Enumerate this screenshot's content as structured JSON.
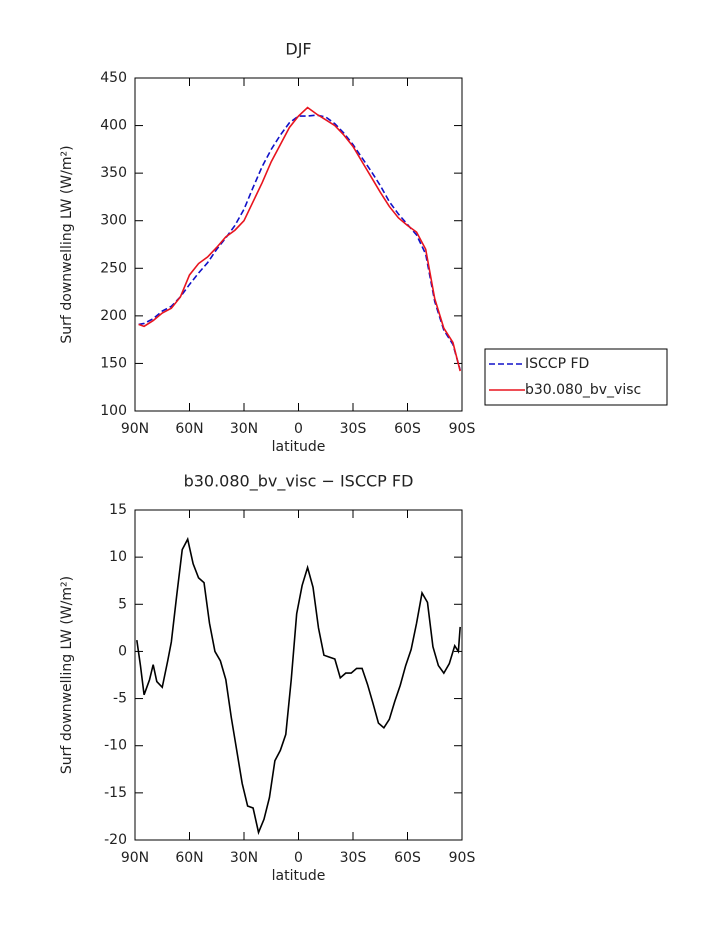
{
  "chart_data": [
    {
      "type": "line",
      "title": "DJF",
      "xlabel": "latitude",
      "ylabel": "Surf downwelling LW (W/m²)",
      "x": [
        88,
        85,
        80,
        75,
        70,
        65,
        60,
        55,
        50,
        45,
        40,
        35,
        30,
        25,
        20,
        15,
        10,
        5,
        0,
        -5,
        -10,
        -15,
        -20,
        -25,
        -30,
        -35,
        -40,
        -45,
        -50,
        -55,
        -60,
        -65,
        -70,
        -75,
        -80,
        -85,
        -89
      ],
      "series": [
        {
          "name": "ISCCP FD",
          "color": "#1010c8",
          "linestyle": "dashed",
          "values": [
            191,
            192,
            197,
            205,
            210,
            220,
            233,
            245,
            256,
            270,
            282,
            295,
            312,
            335,
            357,
            375,
            390,
            403,
            410,
            410,
            411,
            409,
            402,
            392,
            380,
            366,
            352,
            337,
            320,
            307,
            296,
            285,
            265,
            215,
            185,
            170,
            143
          ]
        },
        {
          "name": "b30.080_bv_visc",
          "color": "#e8141e",
          "linestyle": "solid",
          "values": [
            191,
            189,
            195,
            203,
            208,
            220,
            243,
            255,
            262,
            272,
            283,
            290,
            300,
            320,
            340,
            362,
            380,
            398,
            410,
            419,
            412,
            406,
            400,
            390,
            378,
            362,
            346,
            330,
            315,
            303,
            295,
            288,
            270,
            218,
            187,
            172,
            142
          ]
        }
      ],
      "xlim": [
        90,
        -90
      ],
      "xticks": [
        {
          "value": 90,
          "label": "90N"
        },
        {
          "value": 60,
          "label": "60N"
        },
        {
          "value": 30,
          "label": "30N"
        },
        0,
        {
          "value": -30,
          "label": "30S"
        },
        {
          "value": -60,
          "label": "60S"
        },
        {
          "value": -90,
          "label": "90S"
        }
      ],
      "ylim": [
        100,
        450
      ],
      "yticks": [
        100,
        150,
        200,
        250,
        300,
        350,
        400,
        450
      ],
      "legend": "right"
    },
    {
      "type": "line",
      "title": "b30.080_bv_visc − ISCCP FD",
      "xlabel": "latitude",
      "ylabel": "Surf downwelling LW (W/m²)",
      "color": "#000000",
      "x": [
        89,
        87,
        85,
        82,
        80,
        78,
        75,
        72,
        70,
        67,
        64,
        61,
        58,
        55,
        52,
        49,
        46,
        43,
        40,
        37,
        34,
        31,
        28,
        25,
        22,
        19,
        16,
        13,
        10,
        7,
        4,
        1,
        -2,
        -5,
        -8,
        -11,
        -14,
        -17,
        -20,
        -23,
        -26,
        -29,
        -32,
        -35,
        -38,
        -41,
        -44,
        -47,
        -50,
        -53,
        -56,
        -59,
        -62,
        -65,
        -68,
        -71,
        -74,
        -77,
        -80,
        -83,
        -86,
        -88,
        -89
      ],
      "values": [
        1.2,
        -1.5,
        -4.6,
        -3,
        -1.4,
        -3.2,
        -3.8,
        -1,
        1,
        6,
        10.8,
        11.9,
        9.3,
        7.8,
        7.3,
        3,
        0,
        -1,
        -3,
        -7,
        -10.5,
        -14,
        -16.4,
        -16.6,
        -19.2,
        -17.8,
        -15.5,
        -11.6,
        -10.5,
        -8.8,
        -3,
        4,
        7,
        8.9,
        6.8,
        2.5,
        -0.4,
        -0.6,
        -0.8,
        -2.8,
        -2.3,
        -2.3,
        -1.8,
        -1.8,
        -3.5,
        -5.5,
        -7.6,
        -8.1,
        -7.2,
        -5.3,
        -3.6,
        -1.5,
        0.2,
        3,
        6.2,
        5.2,
        0.5,
        -1.5,
        -2.3,
        -1.3,
        0.6,
        0,
        2.6
      ],
      "xlim": [
        90,
        -90
      ],
      "xticks": [
        {
          "value": 90,
          "label": "90N"
        },
        {
          "value": 60,
          "label": "60N"
        },
        {
          "value": 30,
          "label": "30N"
        },
        0,
        {
          "value": -30,
          "label": "30S"
        },
        {
          "value": -60,
          "label": "60S"
        },
        {
          "value": -90,
          "label": "90S"
        }
      ],
      "ylim": [
        -20,
        15
      ],
      "yticks": [
        -20,
        -15,
        -10,
        -5,
        0,
        5,
        10,
        15
      ]
    }
  ]
}
